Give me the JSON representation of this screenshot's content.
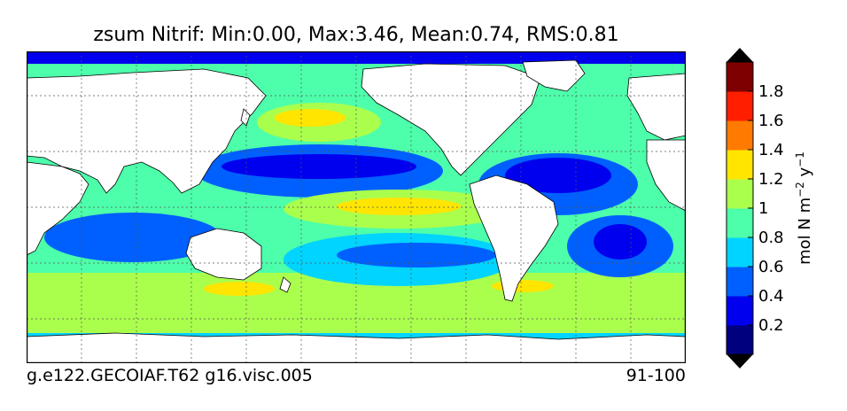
{
  "title": "zsum Nitrif: Min:0.00, Max:3.46, Mean:0.74, RMS:0.81",
  "footer": {
    "case_name": "g.e122.GECOIAF.T62 g16.visc.005",
    "years": "91-100"
  },
  "colorbar": {
    "ticks": [
      "0.2",
      "0.4",
      "0.6",
      "0.8",
      "1",
      "1.2",
      "1.4",
      "1.6",
      "1.8"
    ],
    "levels": [
      0,
      0.2,
      0.4,
      0.6,
      0.8,
      1.0,
      1.2,
      1.4,
      1.6,
      1.8,
      2.0
    ],
    "colors": [
      "#00007f",
      "#0000ee",
      "#0060ff",
      "#00d4ff",
      "#4dffaa",
      "#aaff4d",
      "#ffe500",
      "#ff7a00",
      "#ff1e00",
      "#7f0000"
    ],
    "unit_main": "mol N m",
    "unit_exp1": "−2",
    "unit_mid": " y",
    "unit_exp2": "−1",
    "extend": "both"
  },
  "map": {
    "land_color": "#ffffff",
    "grid": "dotted"
  }
}
